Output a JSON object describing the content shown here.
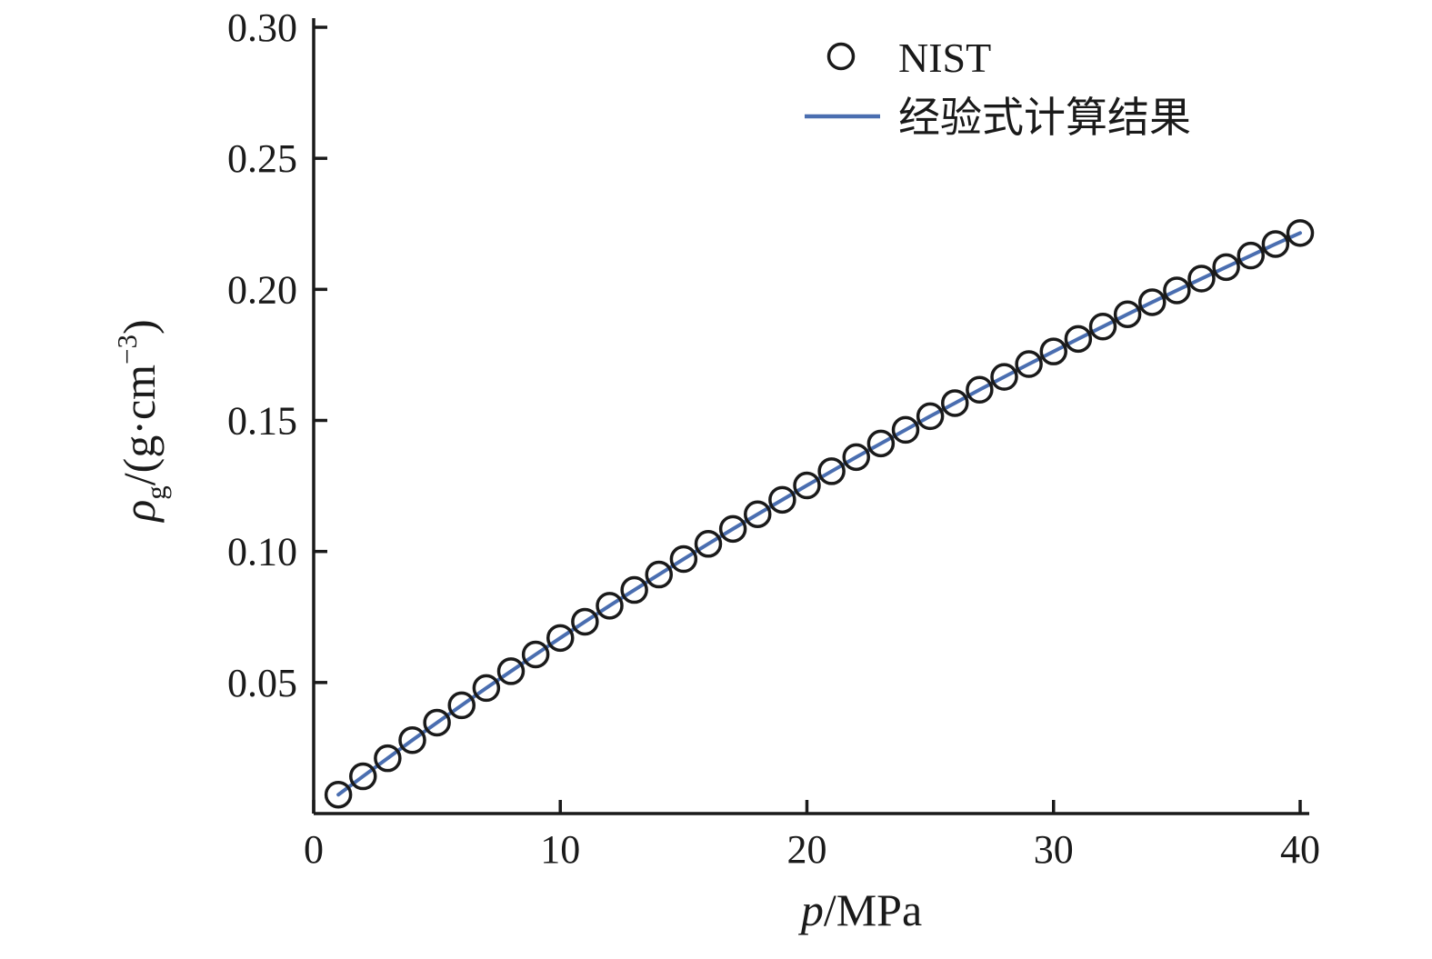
{
  "figure": {
    "background": "#ffffff",
    "axis_color": "#1a1a1a",
    "accent_color": "#4a6eb0"
  },
  "chart_data": {
    "type": "line",
    "title": "",
    "xlabel": {
      "italic": "p",
      "rest": "/MPa"
    },
    "ylabel": {
      "rho": "ρ",
      "sub": "g",
      "mid": "/(g·cm",
      "sup": "−3",
      "end": ")"
    },
    "xlim": [
      0,
      40
    ],
    "ylim": [
      0,
      0.3
    ],
    "grid": false,
    "legend_position": "top-right",
    "xticks": [
      {
        "v": 0,
        "label": "0"
      },
      {
        "v": 10,
        "label": "10"
      },
      {
        "v": 20,
        "label": "20"
      },
      {
        "v": 30,
        "label": "30"
      },
      {
        "v": 40,
        "label": "40"
      }
    ],
    "yticks": [
      {
        "v": 0.05,
        "label": "0.05"
      },
      {
        "v": 0.1,
        "label": "0.10"
      },
      {
        "v": 0.15,
        "label": "0.15"
      },
      {
        "v": 0.2,
        "label": "0.20"
      },
      {
        "v": 0.25,
        "label": "0.25"
      },
      {
        "v": 0.3,
        "label": "0.30"
      }
    ],
    "x": [
      1,
      2,
      3,
      4,
      5,
      6,
      7,
      8,
      9,
      10,
      11,
      12,
      13,
      14,
      15,
      16,
      17,
      18,
      19,
      20,
      21,
      22,
      23,
      24,
      25,
      26,
      27,
      28,
      29,
      30,
      31,
      32,
      33,
      34,
      35,
      36,
      37,
      38,
      39,
      40
    ],
    "series": [
      {
        "name": "NIST",
        "type": "scatter",
        "marker": "open-circle",
        "color": "#1a1a1a",
        "values": [
          0.0072,
          0.0142,
          0.0211,
          0.028,
          0.0347,
          0.0413,
          0.0479,
          0.0543,
          0.0607,
          0.067,
          0.0732,
          0.0793,
          0.0853,
          0.0912,
          0.0971,
          0.1029,
          0.1086,
          0.1142,
          0.1197,
          0.1252,
          0.1306,
          0.136,
          0.1412,
          0.1464,
          0.1516,
          0.1566,
          0.1617,
          0.1666,
          0.1715,
          0.1763,
          0.1811,
          0.1858,
          0.1905,
          0.1951,
          0.1996,
          0.2041,
          0.2085,
          0.2129,
          0.2173,
          0.2215
        ]
      },
      {
        "name": "经验式计算结果",
        "type": "line",
        "color": "#4a6eb0",
        "values": [
          0.0072,
          0.0142,
          0.0211,
          0.028,
          0.0347,
          0.0413,
          0.0479,
          0.0543,
          0.0607,
          0.067,
          0.0732,
          0.0793,
          0.0853,
          0.0912,
          0.0971,
          0.1029,
          0.1086,
          0.1142,
          0.1197,
          0.1252,
          0.1306,
          0.136,
          0.1412,
          0.1464,
          0.1516,
          0.1566,
          0.1617,
          0.1666,
          0.1715,
          0.1763,
          0.1811,
          0.1858,
          0.1905,
          0.1951,
          0.1996,
          0.2041,
          0.2085,
          0.2129,
          0.2173,
          0.2215
        ]
      }
    ],
    "legend": {
      "entries": [
        {
          "marker": "open-circle",
          "label": "NIST"
        },
        {
          "marker": "line",
          "label": "经验式计算结果"
        }
      ]
    }
  }
}
